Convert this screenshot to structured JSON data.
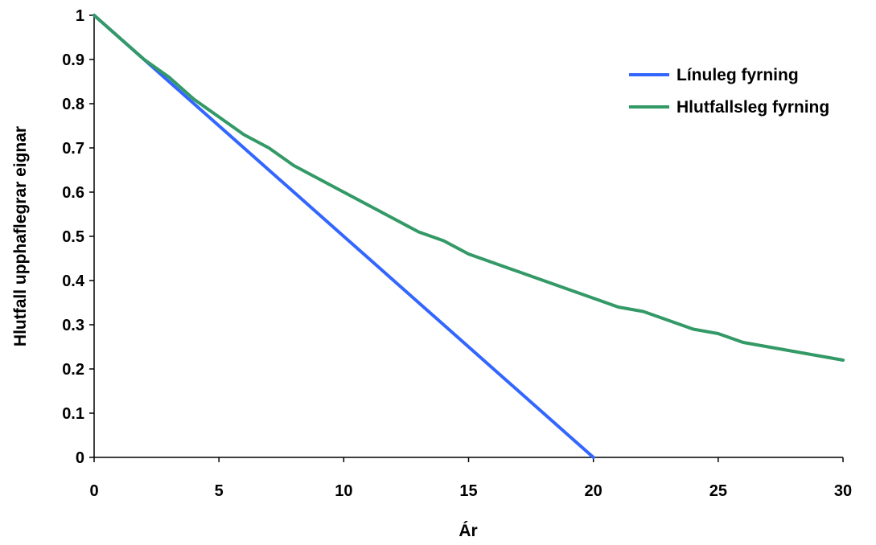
{
  "chart_data": {
    "type": "line",
    "title": "",
    "xlabel": "Ár",
    "ylabel": "Hlutfall upphaflegrar eignar",
    "xlim": [
      0,
      30
    ],
    "ylim": [
      0,
      1
    ],
    "xticks": [
      "0",
      "5",
      "10",
      "15",
      "20",
      "25",
      "30"
    ],
    "yticks": [
      "0",
      "0.1",
      "0.2",
      "0.3",
      "0.4",
      "0.5",
      "0.6",
      "0.7",
      "0.8",
      "0.9",
      "1"
    ],
    "grid": false,
    "legend_position": "top-right",
    "series": [
      {
        "name": "Línuleg fyrning",
        "color": "#3366ff",
        "x": [
          0,
          1,
          2,
          3,
          4,
          5,
          6,
          7,
          8,
          9,
          10,
          11,
          12,
          13,
          14,
          15,
          16,
          17,
          18,
          19,
          20
        ],
        "y": [
          1.0,
          0.95,
          0.9,
          0.85,
          0.8,
          0.75,
          0.7,
          0.65,
          0.6,
          0.55,
          0.5,
          0.45,
          0.4,
          0.35,
          0.3,
          0.25,
          0.2,
          0.15,
          0.1,
          0.05,
          0.0
        ]
      },
      {
        "name": "Hlutfallsleg fyrning",
        "color": "#339966",
        "x": [
          0,
          1,
          2,
          3,
          4,
          5,
          6,
          7,
          8,
          9,
          10,
          11,
          12,
          13,
          14,
          15,
          16,
          17,
          18,
          19,
          20,
          21,
          22,
          23,
          24,
          25,
          26,
          27,
          28,
          29,
          30
        ],
        "y": [
          1.0,
          0.95,
          0.9,
          0.86,
          0.81,
          0.77,
          0.73,
          0.7,
          0.66,
          0.63,
          0.6,
          0.57,
          0.54,
          0.51,
          0.49,
          0.46,
          0.44,
          0.42,
          0.4,
          0.38,
          0.36,
          0.34,
          0.33,
          0.31,
          0.29,
          0.28,
          0.26,
          0.25,
          0.24,
          0.23,
          0.22
        ]
      }
    ]
  }
}
